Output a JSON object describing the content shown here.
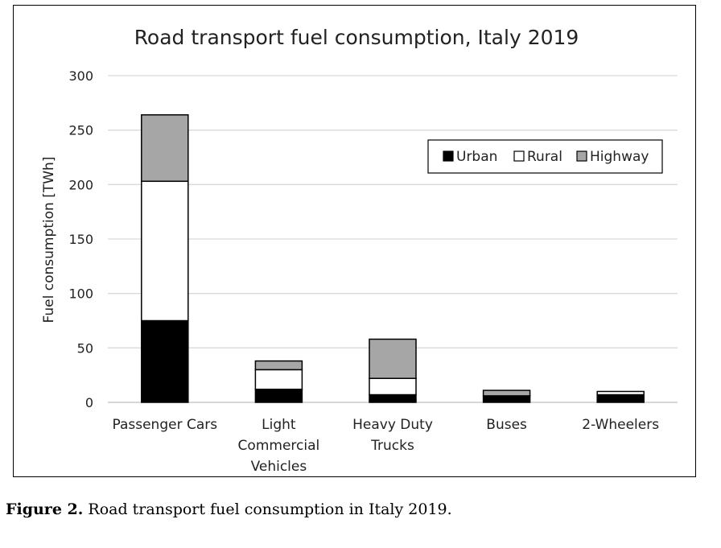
{
  "chart_data": {
    "type": "bar",
    "stacked": true,
    "title": "Road transport fuel consumption, Italy 2019",
    "ylabel": "Fuel consumption [TWh]",
    "xlabel": "",
    "ylim": [
      0,
      300
    ],
    "yticks": [
      0,
      50,
      100,
      150,
      200,
      250,
      300
    ],
    "grid": true,
    "legend_position": "top-right",
    "categories": [
      "Passenger Cars",
      "Light Commercial Vehicles",
      "Heavy Duty Trucks",
      "Buses",
      "2-Wheelers"
    ],
    "category_lines": [
      [
        "Passenger Cars"
      ],
      [
        "Light",
        "Commercial",
        "Vehicles"
      ],
      [
        "Heavy Duty",
        "Trucks"
      ],
      [
        "Buses"
      ],
      [
        "2-Wheelers"
      ]
    ],
    "series": [
      {
        "name": "Urban",
        "color": "#000000",
        "values": [
          75,
          12,
          7,
          6,
          7
        ]
      },
      {
        "name": "Rural",
        "color": "#ffffff",
        "values": [
          128,
          18,
          15,
          0,
          3
        ]
      },
      {
        "name": "Highway",
        "color": "#a6a6a6",
        "values": [
          61,
          8,
          36,
          5,
          0
        ]
      }
    ]
  },
  "caption": {
    "label": "Figure 2.",
    "text": " Road transport fuel consumption in Italy 2019."
  }
}
